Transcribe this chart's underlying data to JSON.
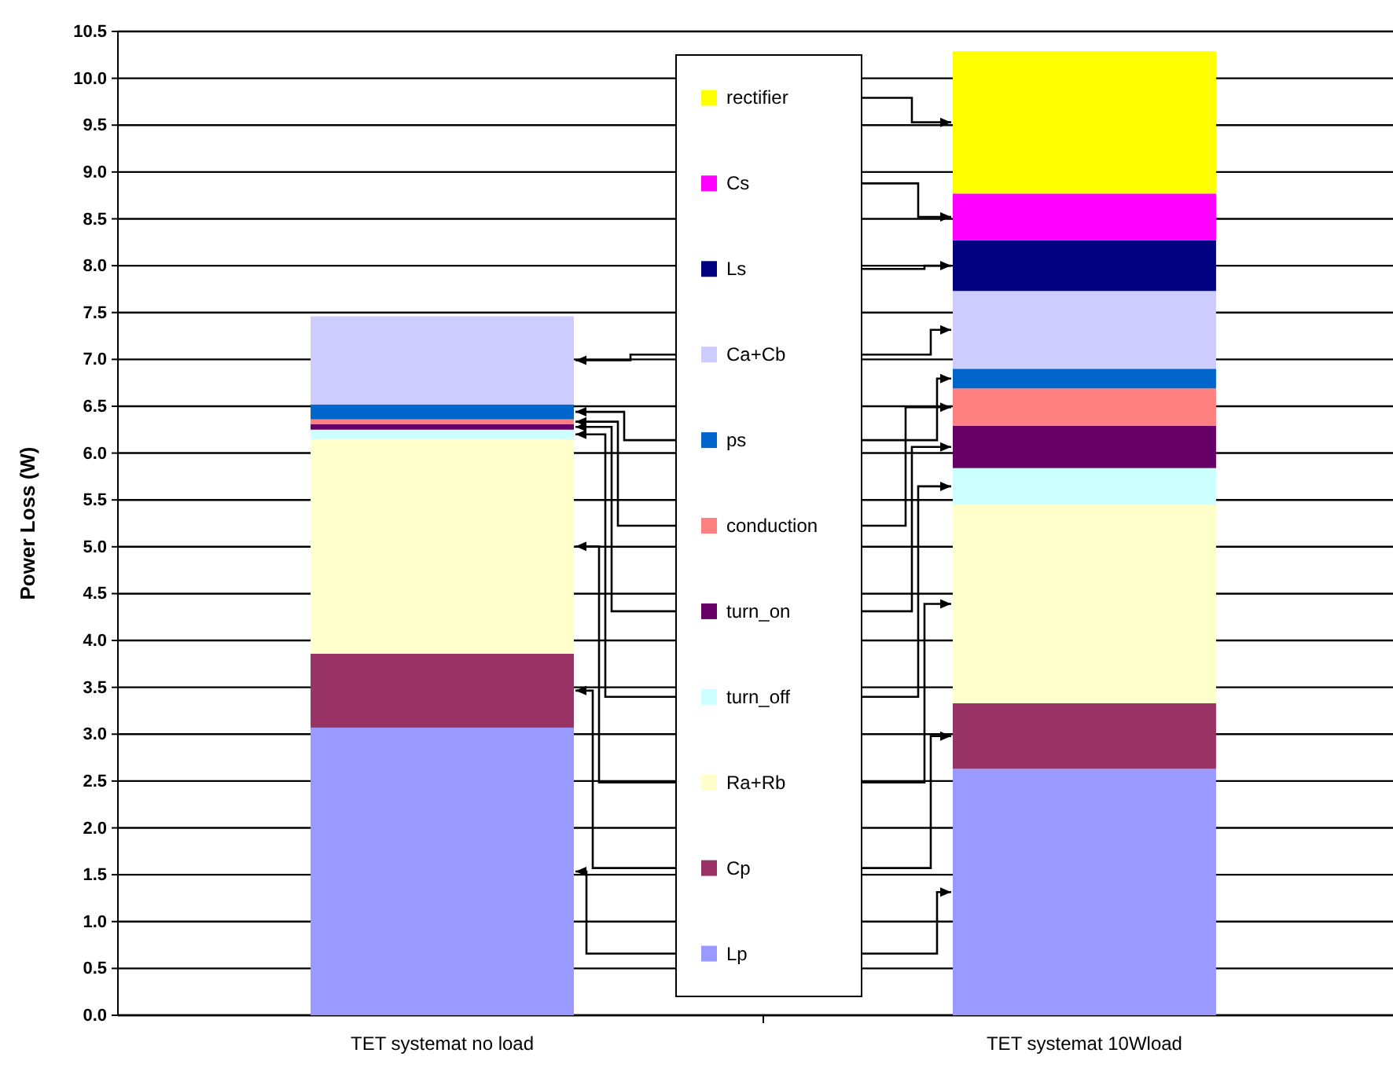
{
  "chart_data": {
    "type": "bar",
    "stacked": true,
    "ylabel": "Power Loss (W)",
    "categories": [
      "TET systemat no load",
      "TET systemat 10Wload"
    ],
    "series": [
      {
        "name": "Lp",
        "color": "#9999ff",
        "values": [
          3.07,
          2.63
        ]
      },
      {
        "name": "Cp",
        "color": "#993366",
        "values": [
          0.79,
          0.7
        ]
      },
      {
        "name": "Ra+Rb",
        "color": "#ffffcc",
        "values": [
          2.29,
          2.12
        ]
      },
      {
        "name": "turn_off",
        "color": "#ccffff",
        "values": [
          0.1,
          0.39
        ]
      },
      {
        "name": "turn_on",
        "color": "#660066",
        "values": [
          0.06,
          0.45
        ]
      },
      {
        "name": "conduction",
        "color": "#ff8080",
        "values": [
          0.05,
          0.4
        ]
      },
      {
        "name": "ps",
        "color": "#0066cc",
        "values": [
          0.16,
          0.21
        ]
      },
      {
        "name": "Ca+Cb",
        "color": "#ccccff",
        "values": [
          0.94,
          0.83
        ]
      },
      {
        "name": "Ls",
        "color": "#000080",
        "values": [
          0,
          0.54
        ]
      },
      {
        "name": "Cs",
        "color": "#ff00ff",
        "values": [
          0,
          0.5
        ]
      },
      {
        "name": "rectifier",
        "color": "#ffff00",
        "values": [
          0,
          1.52
        ]
      }
    ],
    "ylim": [
      0,
      10.5
    ],
    "yticks": [
      {
        "value": 0,
        "label": "0.0"
      },
      {
        "value": 0.5,
        "label": "0.5"
      },
      {
        "value": 1,
        "label": "1.0"
      },
      {
        "value": 1.5,
        "label": "1.5"
      },
      {
        "value": 2,
        "label": "2.0"
      },
      {
        "value": 2.5,
        "label": "2.5"
      },
      {
        "value": 3,
        "label": "3.0"
      },
      {
        "value": 3.5,
        "label": "3.5"
      },
      {
        "value": 4,
        "label": "4.0"
      },
      {
        "value": 4.5,
        "label": "4.5"
      },
      {
        "value": 5,
        "label": "5.0"
      },
      {
        "value": 5.5,
        "label": "5.5"
      },
      {
        "value": 6,
        "label": "6.0"
      },
      {
        "value": 6.5,
        "label": "6.5"
      },
      {
        "value": 7,
        "label": "7.0"
      },
      {
        "value": 7.5,
        "label": "7.5"
      },
      {
        "value": 8,
        "label": "8.0"
      },
      {
        "value": 8.5,
        "label": "8.5"
      },
      {
        "value": 9,
        "label": "9.0"
      },
      {
        "value": 9.5,
        "label": "9.5"
      },
      {
        "value": 10,
        "label": "10.0"
      },
      {
        "value": 10.5,
        "label": "10.5"
      }
    ],
    "grid": "y",
    "legend": "center"
  }
}
